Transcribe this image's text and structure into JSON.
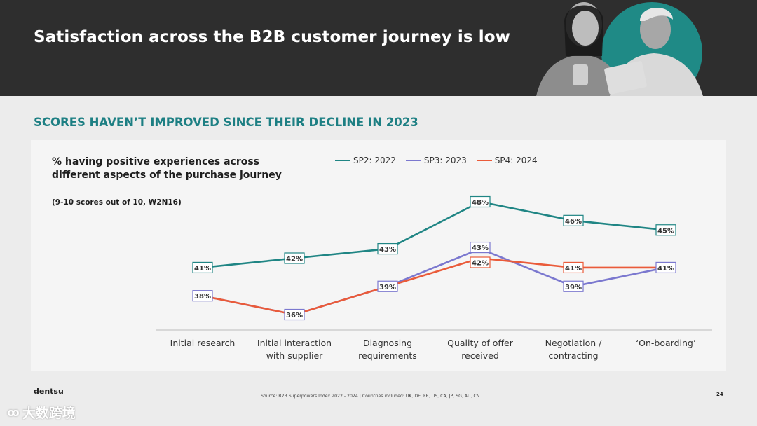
{
  "header": {
    "title": "Satisfaction across the B2B customer journey is low"
  },
  "subtitle": "SCORES HAVEN’T IMPROVED SINCE THEIR DECLINE IN 2023",
  "chart_data": {
    "type": "line",
    "title": "% having positive experiences across different aspects of the purchase journey",
    "note": "(9-10 scores out of 10, W2N16)",
    "categories": [
      [
        "Initial research"
      ],
      [
        "Initial interaction",
        "with supplier"
      ],
      [
        "Diagnosing",
        "requirements"
      ],
      [
        "Quality of offer",
        "received"
      ],
      [
        "Negotiation /",
        "contracting"
      ],
      [
        "‘On-boarding’"
      ]
    ],
    "series": [
      {
        "name": "SP2: 2022",
        "color": "#1f8584",
        "values": [
          41,
          42,
          43,
          48,
          46,
          45
        ]
      },
      {
        "name": "SP3: 2023",
        "color": "#7b78cf",
        "values": [
          38,
          36,
          39,
          43,
          39,
          41
        ]
      },
      {
        "name": "SP4: 2024",
        "color": "#ea5b3a",
        "values": [
          38,
          36,
          39,
          42,
          41,
          41
        ]
      }
    ],
    "labels": [
      {
        "series": 0,
        "values": [
          "41%",
          "42%",
          "43%",
          "48%",
          "46%",
          "45%"
        ]
      },
      {
        "series": 1,
        "values": [
          "38%",
          "36%",
          "39%",
          "43%",
          "39%",
          "41%"
        ]
      },
      {
        "series": 2,
        "values": [
          "",
          "",
          "",
          "42%",
          "41%",
          ""
        ]
      }
    ],
    "ylim": [
      34,
      50
    ]
  },
  "footer": {
    "brand": "dentsu",
    "source": "Source: B2B Superpowers Index 2022 - 2024   |   Countries included: UK, DE, FR, US, CA, JP, SG, AU, CN",
    "page": "24"
  },
  "watermark": {
    "text": "大数跨境",
    "icon": "logo-icon"
  }
}
